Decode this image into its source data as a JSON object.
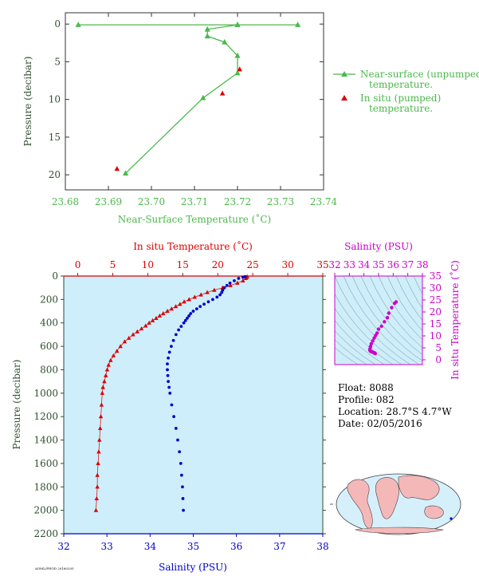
{
  "colors": {
    "green": "#4cb84c",
    "red": "#dd0000",
    "blue": "#0000cc",
    "magenta": "#cc00cc",
    "axis_green": "#2e4e2e",
    "panel_bg": "#cdeefa"
  },
  "info": {
    "float": "Float:  8088",
    "profile": "Profile:  082",
    "location": "Location:  28.7°S   4.7°W",
    "date": "Date:  02/05/2016"
  },
  "footer_code": "AOML/PHOD 20160205",
  "chart_data": [
    {
      "type": "line",
      "xlabel": "Near-Surface Temperature (˚C)",
      "ylabel": "Pressure (decibar)",
      "xlim": [
        23.68,
        23.74
      ],
      "ylim": [
        22,
        -1.5
      ],
      "xticks": [
        23.68,
        23.69,
        23.7,
        23.71,
        23.72,
        23.73,
        23.74
      ],
      "xtick_labels": [
        "23.68",
        "23.69",
        "23.70",
        "23.71",
        "23.72",
        "23.73",
        "23.74"
      ],
      "yticks": [
        0,
        5,
        10,
        15,
        20
      ],
      "ytick_labels": [
        "0",
        "5",
        "10",
        "15",
        "20"
      ],
      "legend_position": "right",
      "series": [
        {
          "name": "Near-surface (unpumped) temperature.",
          "legend_lines": [
            "Near-surface (unpumped)",
            "temperature."
          ],
          "style": "line-triangle",
          "color": "#4cb84c",
          "points": [
            [
              23.683,
              0.1
            ],
            [
              23.72,
              0.1
            ],
            [
              23.734,
              0.1
            ],
            [
              23.72,
              0.1
            ],
            [
              23.713,
              0.7
            ],
            [
              23.713,
              1.6
            ],
            [
              23.717,
              2.4
            ],
            [
              23.72,
              4.2
            ],
            [
              23.72,
              6.5
            ],
            [
              23.712,
              9.8
            ],
            [
              23.694,
              19.8
            ]
          ]
        },
        {
          "name": "In situ (pumped) temperature.",
          "legend_lines": [
            "In situ (pumped)",
            "temperature."
          ],
          "style": "triangle",
          "color": "#dd0000",
          "points": [
            [
              23.7205,
              6.0
            ],
            [
              23.7165,
              9.2
            ],
            [
              23.692,
              19.2
            ]
          ]
        }
      ]
    },
    {
      "type": "scatter",
      "ylabel": "Pressure (decibar)",
      "ylim": [
        2200,
        0
      ],
      "yticks": [
        0,
        200,
        400,
        600,
        800,
        1000,
        1200,
        1400,
        1600,
        1800,
        2000,
        2200
      ],
      "ytick_labels": [
        "0",
        "200",
        "400",
        "600",
        "800",
        "1000",
        "1200",
        "1400",
        "1600",
        "1800",
        "2000",
        "2200"
      ],
      "top_axis": {
        "label": "In situ Temperature (˚C)",
        "lim": [
          -2,
          35
        ],
        "ticks": [
          0,
          5,
          10,
          15,
          20,
          25,
          30,
          35
        ],
        "tick_labels": [
          "0",
          "5",
          "10",
          "15",
          "20",
          "25",
          "30",
          "35"
        ]
      },
      "bottom_axis": {
        "label": "Salinity (PSU)",
        "lim": [
          32,
          38
        ],
        "ticks": [
          32,
          33,
          34,
          35,
          36,
          37,
          38
        ],
        "tick_labels": [
          "32",
          "33",
          "34",
          "35",
          "36",
          "37",
          "38"
        ]
      },
      "temperature": [
        {
          "t": 24.2,
          "p": 5
        },
        {
          "t": 24.1,
          "p": 10
        },
        {
          "t": 24.0,
          "p": 20
        },
        {
          "t": 23.6,
          "p": 40
        },
        {
          "t": 22.8,
          "p": 60
        },
        {
          "t": 21.8,
          "p": 80
        },
        {
          "t": 20.7,
          "p": 100
        },
        {
          "t": 19.5,
          "p": 120
        },
        {
          "t": 18.5,
          "p": 140
        },
        {
          "t": 17.6,
          "p": 160
        },
        {
          "t": 16.7,
          "p": 180
        },
        {
          "t": 15.9,
          "p": 200
        },
        {
          "t": 15.2,
          "p": 220
        },
        {
          "t": 14.6,
          "p": 240
        },
        {
          "t": 14.0,
          "p": 260
        },
        {
          "t": 13.4,
          "p": 280
        },
        {
          "t": 12.8,
          "p": 300
        },
        {
          "t": 12.2,
          "p": 320
        },
        {
          "t": 11.7,
          "p": 340
        },
        {
          "t": 11.2,
          "p": 360
        },
        {
          "t": 10.7,
          "p": 380
        },
        {
          "t": 10.2,
          "p": 400
        },
        {
          "t": 9.7,
          "p": 425
        },
        {
          "t": 9.1,
          "p": 450
        },
        {
          "t": 8.5,
          "p": 475
        },
        {
          "t": 7.9,
          "p": 500
        },
        {
          "t": 7.3,
          "p": 530
        },
        {
          "t": 6.7,
          "p": 560
        },
        {
          "t": 6.1,
          "p": 600
        },
        {
          "t": 5.6,
          "p": 640
        },
        {
          "t": 5.1,
          "p": 680
        },
        {
          "t": 4.7,
          "p": 720
        },
        {
          "t": 4.4,
          "p": 760
        },
        {
          "t": 4.2,
          "p": 800
        },
        {
          "t": 4.0,
          "p": 850
        },
        {
          "t": 3.8,
          "p": 900
        },
        {
          "t": 3.6,
          "p": 950
        },
        {
          "t": 3.5,
          "p": 1000
        },
        {
          "t": 3.4,
          "p": 1100
        },
        {
          "t": 3.3,
          "p": 1200
        },
        {
          "t": 3.2,
          "p": 1300
        },
        {
          "t": 3.1,
          "p": 1400
        },
        {
          "t": 3.0,
          "p": 1500
        },
        {
          "t": 2.9,
          "p": 1600
        },
        {
          "t": 2.8,
          "p": 1700
        },
        {
          "t": 2.8,
          "p": 1800
        },
        {
          "t": 2.7,
          "p": 1900
        },
        {
          "t": 2.6,
          "p": 2000
        }
      ],
      "salinity": [
        {
          "s": 36.2,
          "p": 5
        },
        {
          "s": 36.15,
          "p": 10
        },
        {
          "s": 36.05,
          "p": 20
        },
        {
          "s": 35.95,
          "p": 40
        },
        {
          "s": 35.85,
          "p": 60
        },
        {
          "s": 35.78,
          "p": 80
        },
        {
          "s": 35.72,
          "p": 100
        },
        {
          "s": 35.68,
          "p": 120
        },
        {
          "s": 35.66,
          "p": 140
        },
        {
          "s": 35.62,
          "p": 160
        },
        {
          "s": 35.55,
          "p": 180
        },
        {
          "s": 35.45,
          "p": 200
        },
        {
          "s": 35.35,
          "p": 220
        },
        {
          "s": 35.25,
          "p": 240
        },
        {
          "s": 35.16,
          "p": 260
        },
        {
          "s": 35.08,
          "p": 280
        },
        {
          "s": 35.0,
          "p": 300
        },
        {
          "s": 34.94,
          "p": 320
        },
        {
          "s": 34.9,
          "p": 340
        },
        {
          "s": 34.86,
          "p": 360
        },
        {
          "s": 34.82,
          "p": 380
        },
        {
          "s": 34.78,
          "p": 400
        },
        {
          "s": 34.72,
          "p": 430
        },
        {
          "s": 34.66,
          "p": 460
        },
        {
          "s": 34.6,
          "p": 500
        },
        {
          "s": 34.54,
          "p": 550
        },
        {
          "s": 34.49,
          "p": 600
        },
        {
          "s": 34.45,
          "p": 650
        },
        {
          "s": 34.42,
          "p": 700
        },
        {
          "s": 34.4,
          "p": 750
        },
        {
          "s": 34.4,
          "p": 800
        },
        {
          "s": 34.41,
          "p": 850
        },
        {
          "s": 34.42,
          "p": 900
        },
        {
          "s": 34.44,
          "p": 950
        },
        {
          "s": 34.46,
          "p": 1000
        },
        {
          "s": 34.5,
          "p": 1100
        },
        {
          "s": 34.55,
          "p": 1200
        },
        {
          "s": 34.6,
          "p": 1300
        },
        {
          "s": 34.64,
          "p": 1400
        },
        {
          "s": 34.68,
          "p": 1500
        },
        {
          "s": 34.71,
          "p": 1600
        },
        {
          "s": 34.73,
          "p": 1700
        },
        {
          "s": 34.75,
          "p": 1800
        },
        {
          "s": 34.76,
          "p": 1900
        },
        {
          "s": 34.77,
          "p": 2000
        }
      ]
    },
    {
      "type": "scatter",
      "xlabel": "Salinity (PSU)",
      "ylabel": "In situ Temperature (˚C)",
      "xlim": [
        32,
        38
      ],
      "ylim": [
        -2,
        35
      ],
      "xticks": [
        32,
        33,
        34,
        35,
        36,
        37,
        38
      ],
      "xtick_labels": [
        "32",
        "33",
        "34",
        "35",
        "36",
        "37",
        "38"
      ],
      "yticks": [
        0,
        5,
        10,
        15,
        20,
        25,
        30,
        35
      ],
      "ytick_labels": [
        "0",
        "5",
        "10",
        "15",
        "20",
        "25",
        "30",
        "35"
      ],
      "points": [
        [
          36.2,
          24.2
        ],
        [
          36.1,
          23.6
        ],
        [
          35.9,
          21.8
        ],
        [
          35.7,
          19.5
        ],
        [
          35.6,
          17.6
        ],
        [
          35.4,
          15.9
        ],
        [
          35.2,
          14.0
        ],
        [
          35.0,
          12.8
        ],
        [
          34.9,
          11.2
        ],
        [
          34.8,
          10.2
        ],
        [
          34.7,
          9.1
        ],
        [
          34.6,
          7.9
        ],
        [
          34.5,
          6.7
        ],
        [
          34.45,
          5.6
        ],
        [
          34.42,
          4.7
        ],
        [
          34.4,
          4.2
        ],
        [
          34.42,
          3.8
        ],
        [
          34.46,
          3.5
        ],
        [
          34.55,
          3.3
        ],
        [
          34.64,
          3.1
        ],
        [
          34.71,
          2.9
        ],
        [
          34.75,
          2.8
        ],
        [
          34.77,
          2.6
        ]
      ]
    }
  ]
}
